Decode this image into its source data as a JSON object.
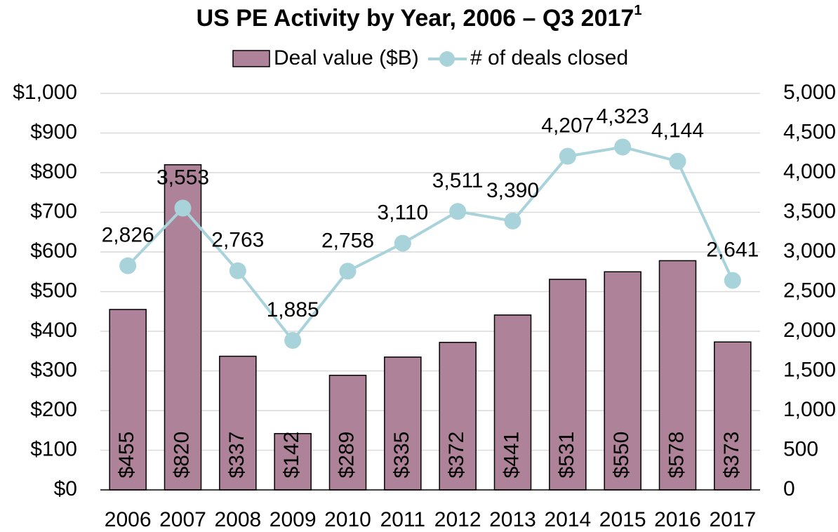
{
  "chart_data": {
    "type": "bar_line",
    "title": "US PE Activity by Year, 2006 – Q3 2017",
    "title_superscript": "1",
    "categories": [
      "2006",
      "2007",
      "2008",
      "2009",
      "2010",
      "2011",
      "2012",
      "2013",
      "2014",
      "2015",
      "2016",
      "2017"
    ],
    "series": [
      {
        "name": "Deal value ($B)",
        "type": "bar",
        "color": "#ae8299",
        "values": [
          455,
          820,
          337,
          142,
          289,
          335,
          372,
          441,
          531,
          550,
          578,
          373
        ],
        "value_labels": [
          "$455",
          "$820",
          "$337",
          "$142",
          "$289",
          "$335",
          "$372",
          "$441",
          "$531",
          "$550",
          "$578",
          "$373"
        ]
      },
      {
        "name": "# of deals closed",
        "type": "line",
        "axis": "y2",
        "color": "#a8d3da",
        "values": [
          2826,
          3553,
          2763,
          1885,
          2758,
          3110,
          3511,
          3390,
          4207,
          4323,
          4144,
          2641
        ],
        "value_labels": [
          "2,826",
          "3,553",
          "2,763",
          "1,885",
          "2,758",
          "3,110",
          "3,511",
          "3,390",
          "4,207",
          "4,323",
          "4,144",
          "2,641"
        ]
      }
    ],
    "ylim": [
      0,
      1000
    ],
    "yticks": [
      {
        "value": 0,
        "label": "$0"
      },
      {
        "value": 100,
        "label": "$100"
      },
      {
        "value": 200,
        "label": "$200"
      },
      {
        "value": 300,
        "label": "$300"
      },
      {
        "value": 400,
        "label": "$400"
      },
      {
        "value": 500,
        "label": "$500"
      },
      {
        "value": 600,
        "label": "$600"
      },
      {
        "value": 700,
        "label": "$700"
      },
      {
        "value": 800,
        "label": "$800"
      },
      {
        "value": 900,
        "label": "$900"
      },
      {
        "value": 1000,
        "label": "$1,000"
      }
    ],
    "y2lim": [
      0,
      5000
    ],
    "y2ticks": [
      0,
      500,
      {
        "value": 1000,
        "label": "1,000"
      },
      {
        "value": 1500,
        "label": "1,500"
      },
      {
        "value": 2000,
        "label": "2,000"
      },
      {
        "value": 2500,
        "label": "2,500"
      },
      {
        "value": 3000,
        "label": "3,000"
      },
      {
        "value": 3500,
        "label": "3,500"
      },
      {
        "value": 4000,
        "label": "4,000"
      },
      {
        "value": 4500,
        "label": "4,500"
      },
      {
        "value": 5000,
        "label": "5,000"
      }
    ],
    "grid": true,
    "legend": "top"
  }
}
